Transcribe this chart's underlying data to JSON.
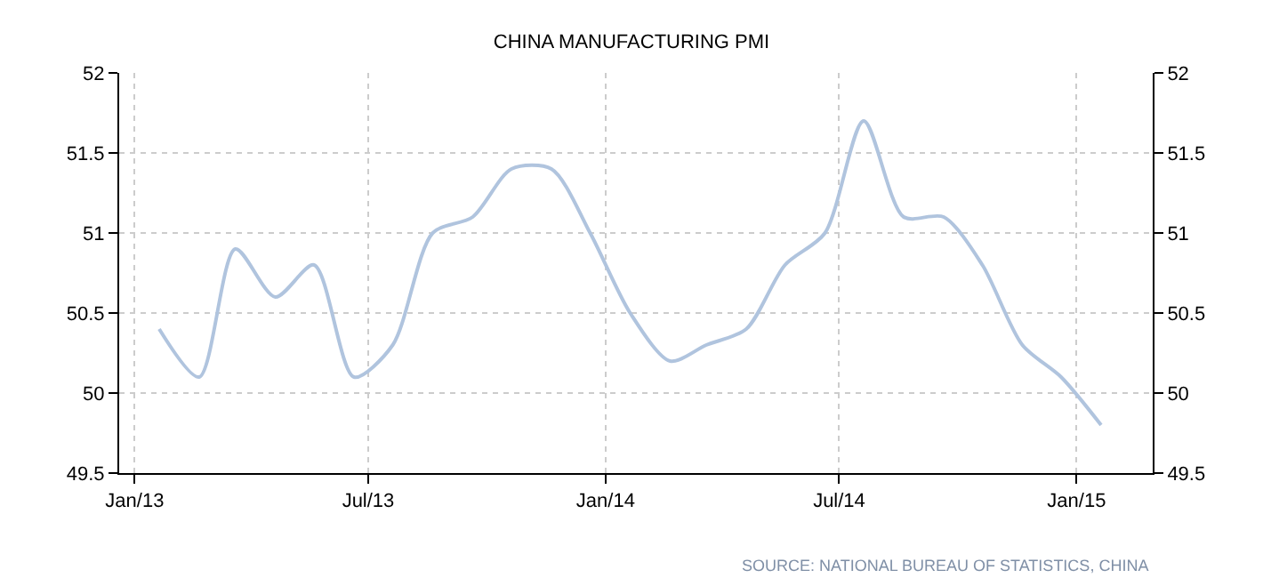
{
  "chart_data": {
    "type": "line",
    "title": "CHINA MANUFACTURING PMI",
    "x": [
      "2013-01-20",
      "2013-02-20",
      "2013-03-20",
      "2013-04-20",
      "2013-05-20",
      "2013-06-20",
      "2013-07-20",
      "2013-08-20",
      "2013-09-20",
      "2013-10-20",
      "2013-11-20",
      "2013-12-20",
      "2014-01-20",
      "2014-02-20",
      "2014-03-20",
      "2014-04-20",
      "2014-05-20",
      "2014-06-20",
      "2014-07-20",
      "2014-08-20",
      "2014-09-20",
      "2014-10-20",
      "2014-11-20",
      "2014-12-20",
      "2015-01-20"
    ],
    "series": [
      {
        "color": "#b0c4de",
        "values": [
          50.4,
          50.1,
          50.9,
          50.6,
          50.8,
          50.1,
          50.3,
          51.0,
          51.1,
          51.4,
          51.4,
          51.0,
          50.5,
          50.2,
          50.3,
          50.4,
          50.8,
          51.0,
          51.7,
          51.1,
          51.1,
          50.8,
          50.3,
          50.1,
          49.8
        ]
      }
    ],
    "xlim": [
      "2012-12-20",
      "2015-03-01"
    ],
    "xticks": [
      {
        "value": "2013-01-01",
        "label": "Jan/13"
      },
      {
        "value": "2013-07-01",
        "label": "Jul/13"
      },
      {
        "value": "2014-01-01",
        "label": "Jan/14"
      },
      {
        "value": "2014-07-01",
        "label": "Jul/14"
      },
      {
        "value": "2015-01-01",
        "label": "Jan/15"
      }
    ],
    "ylim": [
      49.5,
      52
    ],
    "yticks": [
      49.5,
      50,
      50.5,
      51,
      51.5,
      52
    ],
    "y2lim": [
      49.5,
      52
    ],
    "y2ticks": [
      49.5,
      50,
      50.5,
      51,
      51.5,
      52
    ],
    "grid": true,
    "marker": "none",
    "line_style": "solid",
    "annotations": [
      "SOURCE: NATIONAL BUREAU OF STATISTICS, CHINA"
    ]
  }
}
